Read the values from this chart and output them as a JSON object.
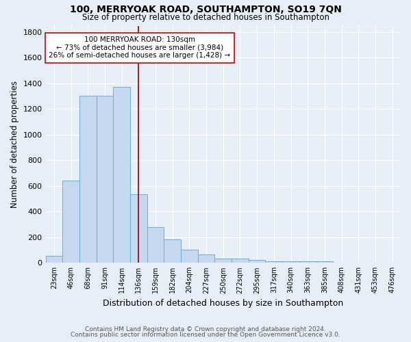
{
  "title": "100, MERRYOAK ROAD, SOUTHAMPTON, SO19 7QN",
  "subtitle": "Size of property relative to detached houses in Southampton",
  "xlabel": "Distribution of detached houses by size in Southampton",
  "ylabel": "Number of detached properties",
  "categories": [
    "23sqm",
    "46sqm",
    "68sqm",
    "91sqm",
    "114sqm",
    "136sqm",
    "159sqm",
    "182sqm",
    "204sqm",
    "227sqm",
    "250sqm",
    "272sqm",
    "295sqm",
    "317sqm",
    "340sqm",
    "363sqm",
    "385sqm",
    "408sqm",
    "431sqm",
    "453sqm",
    "476sqm"
  ],
  "bar_heights": [
    55,
    640,
    1305,
    1305,
    1370,
    535,
    280,
    185,
    105,
    65,
    35,
    35,
    25,
    10,
    10,
    10,
    10,
    3,
    2,
    2,
    2
  ],
  "bar_color": "#c5d8f0",
  "bar_edge_color": "#6baed6",
  "background_color": "#e8eef8",
  "grid_color": "#ffffff",
  "vline_x": 5,
  "vline_color": "#8b0000",
  "annotation_text": "100 MERRYOAK ROAD: 130sqm\n← 73% of detached houses are smaller (3,984)\n26% of semi-detached houses are larger (1,428) →",
  "annotation_box_color": "white",
  "annotation_box_edge": "#cc0000",
  "ylim": [
    0,
    1850
  ],
  "yticks": [
    0,
    200,
    400,
    600,
    800,
    1000,
    1200,
    1400,
    1600,
    1800
  ],
  "footnote1": "Contains HM Land Registry data © Crown copyright and database right 2024.",
  "footnote2": "Contains public sector information licensed under the Open Government Licence v3.0."
}
